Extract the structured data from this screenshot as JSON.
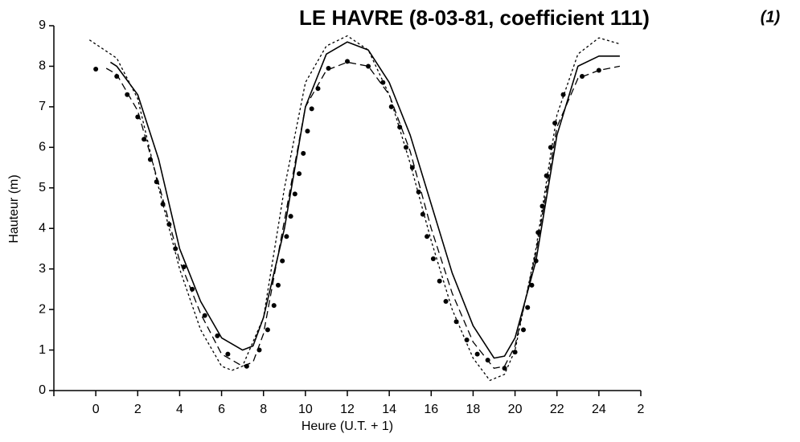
{
  "chart_data": {
    "type": "line",
    "title": "LE HAVRE (8-03-81, coefficient 111)",
    "annotation": "(1)",
    "xlabel": "Heure (U.T. + 1)",
    "ylabel": "Hauteur (m)",
    "xlim": [
      -2,
      26
    ],
    "xticks": [
      -2,
      0,
      2,
      4,
      6,
      8,
      10,
      12,
      14,
      16,
      18,
      20,
      22,
      24,
      {
        "value": 26,
        "label": "2"
      }
    ],
    "ylim": [
      0,
      9
    ],
    "yticks": [
      0,
      1,
      2,
      3,
      4,
      5,
      6,
      7,
      8,
      9
    ],
    "series": [
      {
        "color": "#000000",
        "dash": "solid",
        "x": [
          0.7,
          1,
          2,
          3,
          4,
          5,
          6,
          7,
          7.5,
          8,
          9,
          10,
          11,
          12,
          13,
          14,
          15,
          16,
          17,
          18,
          19,
          19.5,
          20,
          21,
          22,
          23,
          24,
          25
        ],
        "values": [
          8.1,
          8.0,
          7.3,
          5.7,
          3.5,
          2.2,
          1.3,
          1.0,
          1.1,
          1.8,
          4.0,
          7.0,
          8.3,
          8.6,
          8.4,
          7.6,
          6.3,
          4.6,
          2.9,
          1.6,
          0.8,
          0.85,
          1.3,
          3.2,
          6.3,
          8.0,
          8.25,
          8.25
        ]
      },
      {
        "color": "#000000",
        "dash": "long",
        "x": [
          0.5,
          1,
          2,
          3,
          4,
          5,
          6,
          7,
          7.5,
          8,
          9,
          10,
          11,
          12,
          13,
          14,
          15,
          16,
          17,
          18,
          19,
          19.5,
          20,
          21,
          22,
          23,
          24,
          25
        ],
        "values": [
          7.95,
          7.8,
          6.9,
          5.1,
          3.2,
          1.9,
          0.9,
          0.6,
          0.7,
          1.4,
          4.2,
          7.0,
          7.9,
          8.1,
          8.0,
          7.3,
          5.9,
          4.0,
          2.4,
          1.2,
          0.55,
          0.6,
          1.1,
          3.4,
          6.5,
          7.7,
          7.9,
          8.0
        ]
      },
      {
        "color": "#000000",
        "dash": "short",
        "x": [
          -0.3,
          1,
          2,
          3,
          4,
          5,
          6,
          6.5,
          7,
          8,
          9,
          10,
          11,
          12,
          13,
          14,
          15,
          16,
          17,
          18,
          18.8,
          19.5,
          20,
          21,
          22,
          23,
          24,
          25
        ],
        "values": [
          8.65,
          8.2,
          7.2,
          5.0,
          3.0,
          1.5,
          0.6,
          0.5,
          0.6,
          1.8,
          5.0,
          7.6,
          8.5,
          8.75,
          8.4,
          7.3,
          5.6,
          3.7,
          2.0,
          0.8,
          0.25,
          0.4,
          1.0,
          3.5,
          6.8,
          8.3,
          8.7,
          8.55
        ]
      },
      {
        "color": "#000000",
        "dash": "none",
        "marker": "dot",
        "x": [
          0,
          1,
          1.5,
          2,
          2.3,
          2.6,
          2.9,
          3.2,
          3.5,
          3.8,
          4.2,
          4.6,
          5.2,
          5.8,
          6.3,
          7.2,
          7.8,
          8.2,
          8.5,
          8.7,
          8.9,
          9.1,
          9.3,
          9.5,
          9.7,
          9.9,
          10.1,
          10.3,
          10.6,
          11.1,
          12,
          13,
          13.7,
          14.1,
          14.5,
          14.8,
          15.1,
          15.4,
          15.6,
          15.8,
          16.1,
          16.4,
          16.7,
          17.2,
          17.7,
          18.2,
          18.7,
          19.5,
          20,
          20.4,
          20.6,
          20.8,
          21,
          21.1,
          21.3,
          21.5,
          21.7,
          21.9,
          22.3,
          23.2,
          24
        ],
        "values": [
          7.93,
          7.75,
          7.3,
          6.75,
          6.2,
          5.7,
          5.15,
          4.6,
          4.1,
          3.5,
          3.05,
          2.5,
          1.85,
          1.35,
          0.9,
          0.6,
          1.0,
          1.5,
          2.1,
          2.6,
          3.2,
          3.8,
          4.3,
          4.85,
          5.35,
          5.85,
          6.4,
          6.95,
          7.45,
          7.95,
          8.12,
          8.0,
          7.6,
          7.0,
          6.5,
          6.0,
          5.5,
          4.9,
          4.35,
          3.8,
          3.25,
          2.7,
          2.2,
          1.7,
          1.25,
          0.9,
          0.75,
          0.55,
          0.95,
          1.5,
          2.05,
          2.6,
          3.2,
          3.9,
          4.55,
          5.3,
          6.0,
          6.6,
          7.3,
          7.75,
          7.9
        ]
      }
    ]
  }
}
